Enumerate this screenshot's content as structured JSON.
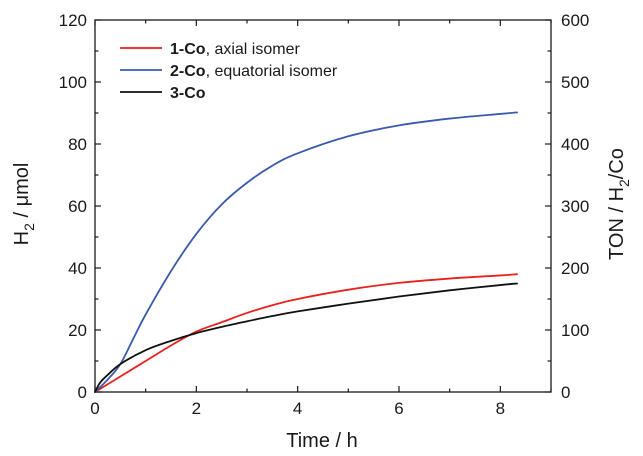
{
  "chart_data": {
    "type": "line",
    "xlabel": "Time  /  h",
    "ylabel": {
      "main": "H",
      "sub": "2",
      "rest": "  /  μmol"
    },
    "y2label": {
      "main": "TON  /  H",
      "sub": "2",
      "rest": "/Co"
    },
    "xlim": [
      0,
      9
    ],
    "ylim": [
      0,
      120
    ],
    "y2lim": [
      0,
      600
    ],
    "x_ticks": [
      "0",
      "2",
      "4",
      "6",
      "8"
    ],
    "y_ticks": [
      "0",
      "20",
      "40",
      "60",
      "80",
      "100",
      "120"
    ],
    "y2_ticks": [
      "0",
      "100",
      "200",
      "300",
      "400",
      "500",
      "600"
    ],
    "legend_position": "top-left",
    "series": [
      {
        "key": "1co",
        "name_bold": "1-Co",
        "name_rest": ", axial isomer",
        "color": "#e8201e",
        "x": [
          0,
          0.25,
          0.5,
          1,
          1.5,
          2,
          2.5,
          3,
          3.5,
          4,
          5,
          6,
          7,
          8,
          8.33
        ],
        "y": [
          0,
          2.5,
          5,
          10,
          15,
          19.5,
          22.5,
          25.5,
          28,
          30,
          33,
          35.2,
          36.6,
          37.6,
          38
        ]
      },
      {
        "key": "2co",
        "name_bold": "2-Co",
        "name_rest": ", equatorial isomer",
        "color": "#3a5bab",
        "x": [
          0,
          0.25,
          0.5,
          0.75,
          1,
          1.5,
          2,
          2.5,
          3,
          3.5,
          4,
          5,
          6,
          7,
          8,
          8.33
        ],
        "y": [
          0,
          4,
          9,
          17,
          25,
          39,
          51,
          60.5,
          67.5,
          73,
          77,
          82.5,
          86,
          88.2,
          89.7,
          90.2
        ]
      },
      {
        "key": "3co",
        "name_bold": "3-Co",
        "name_rest": "",
        "color": "#111111",
        "x": [
          0,
          0.1,
          0.25,
          0.5,
          1,
          1.5,
          2,
          2.5,
          3,
          3.5,
          4,
          5,
          6,
          7,
          8,
          8.33
        ],
        "y": [
          0,
          3,
          5.5,
          9,
          13.5,
          16.5,
          19,
          21,
          22.8,
          24.5,
          26,
          28.5,
          30.8,
          32.8,
          34.5,
          35
        ]
      }
    ]
  }
}
